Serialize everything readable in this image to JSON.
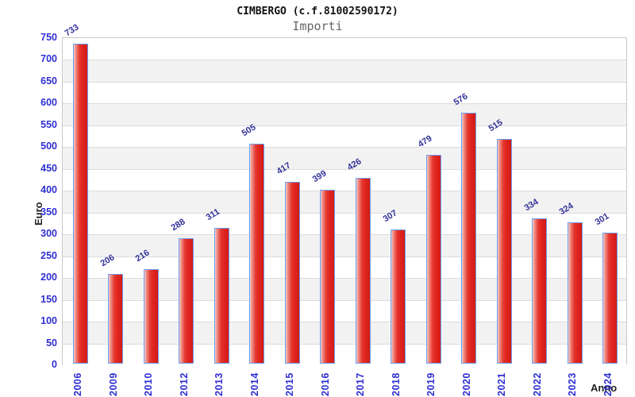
{
  "header": {
    "title": "CIMBERGO (c.f.81002590172)",
    "subtitle": "Importi"
  },
  "chart_data": {
    "type": "bar",
    "title": "CIMBERGO (c.f.81002590172)",
    "subtitle": "Importi",
    "xlabel": "Anno",
    "ylabel": "Euro",
    "categories": [
      "2006",
      "2009",
      "2010",
      "2012",
      "2013",
      "2014",
      "2015",
      "2016",
      "2017",
      "2018",
      "2019",
      "2020",
      "2021",
      "2022",
      "2023",
      "2024"
    ],
    "values": [
      733,
      206,
      216,
      288,
      311,
      505,
      417,
      399,
      426,
      307,
      479,
      576,
      515,
      334,
      324,
      301
    ],
    "ylim": [
      0,
      750
    ],
    "ytick_step": 50,
    "grid": true,
    "legend": "none",
    "bar_labels_rotated_deg": -32,
    "x_labels_rotated_deg": -90,
    "colors": {
      "bar_fill_light": "#f7cdc9",
      "bar_fill_mid": "#e5372e",
      "bar_fill_dark": "#d21b16",
      "bar_border": "#6b9ff2",
      "tick_label": "#2f2fd3",
      "value_label": "#333399",
      "band_gray": "#f2f2f2",
      "band_white": "#ffffff",
      "gridline": "#dcdcdc",
      "plot_border": "#c9c9c9",
      "axis_title": "#222222",
      "title": "#111111",
      "subtitle": "#666666"
    }
  }
}
